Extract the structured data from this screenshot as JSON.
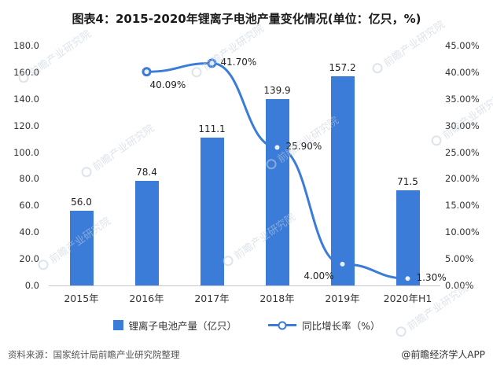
{
  "title": "图表4：2015-2020年锂离子电池产量变化情况(单位：亿只，%)",
  "chart_data": {
    "type": "bar",
    "subtype": "bar-line-combo",
    "categories": [
      "2015年",
      "2016年",
      "2017年",
      "2018年",
      "2019年",
      "2020年H1"
    ],
    "series": [
      {
        "name": "锂离子电池产量（亿只）",
        "type": "bar",
        "axis": "left",
        "color": "#3a7cd8",
        "values": [
          56.0,
          78.4,
          111.1,
          139.9,
          157.2,
          71.5
        ]
      },
      {
        "name": "同比增长率（%）",
        "type": "line",
        "axis": "right",
        "color": "#3a7cd8",
        "values": [
          null,
          40.09,
          41.7,
          25.9,
          4.0,
          1.3
        ],
        "point_labels": [
          "",
          "40.09%",
          "41.70%",
          "25.90%",
          "4.00%",
          "1.30%"
        ],
        "label_positions": [
          "",
          "below-right",
          "right",
          "right",
          "left-below",
          "right"
        ]
      }
    ],
    "bar_labels": [
      "56.0",
      "78.4",
      "111.1",
      "139.9",
      "157.2",
      "71.5"
    ],
    "left_axis": {
      "min": 0,
      "max": 180,
      "step": 20,
      "tick_labels": [
        "0.0",
        "20.0",
        "40.0",
        "60.0",
        "80.0",
        "100.0",
        "120.0",
        "140.0",
        "160.0",
        "180.0"
      ]
    },
    "right_axis": {
      "min": 0,
      "max": 45,
      "step": 5,
      "tick_labels": [
        "0.00%",
        "5.00%",
        "10.00%",
        "15.00%",
        "20.00%",
        "25.00%",
        "30.00%",
        "35.00%",
        "40.00%",
        "45.00%"
      ]
    },
    "grid": false,
    "legend_position": "bottom",
    "title": "图表4：2015-2020年锂离子电池产量变化情况(单位：亿只，%)"
  },
  "legend": [
    {
      "label": "锂离子电池产量（亿只）",
      "swatch": "bar"
    },
    {
      "label": "同比增长率（%）",
      "swatch": "line"
    }
  ],
  "footer": {
    "source": "资料来源：国家统计局前瞻产业研究院整理",
    "credit": "@前瞻经济学人APP"
  },
  "watermark": {
    "text": "前瞻产业研究院"
  },
  "colors": {
    "accent": "#3a7cd8",
    "text": "#333333",
    "watermark": "#c3cedb"
  }
}
